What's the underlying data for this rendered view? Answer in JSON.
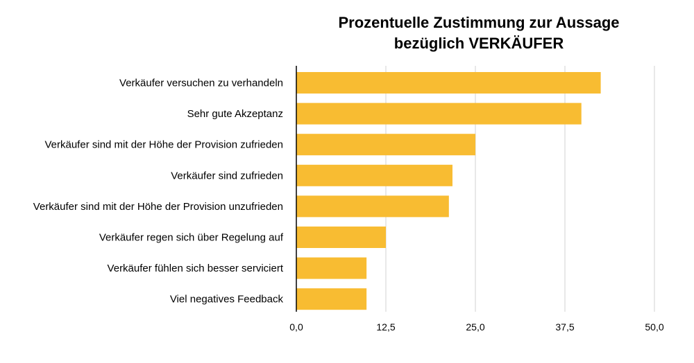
{
  "chart_data": {
    "type": "bar",
    "orientation": "horizontal",
    "title_lines": [
      "Prozentuelle Zustimmung zur Aussage",
      "bezüglich VERKÄUFER"
    ],
    "categories": [
      "Verkäufer versuchen zu verhandeln",
      "Sehr gute Akzeptanz",
      "Verkäufer sind mit der Höhe der Provision zufrieden",
      "Verkäufer sind zufrieden",
      "Verkäufer sind mit der Höhe der Provision unzufrieden",
      "Verkäufer regen sich über Regelung auf",
      "Verkäufer fühlen sich besser serviciert",
      "Viel negatives Feedback"
    ],
    "values": [
      42.5,
      39.8,
      25.0,
      21.8,
      21.3,
      12.5,
      9.8,
      9.8
    ],
    "xlim": [
      0,
      50
    ],
    "xticks": [
      0,
      12.5,
      25,
      37.5,
      50
    ],
    "xtick_labels": [
      "0,0",
      "12,5",
      "25,0",
      "37,5",
      "50,0"
    ],
    "xlabel": "",
    "ylabel": "",
    "grid": "vertical",
    "legend": "none",
    "bar_color": "#F8BC32",
    "grid_color": "#d0d0d0",
    "axis_color": "#000000"
  }
}
